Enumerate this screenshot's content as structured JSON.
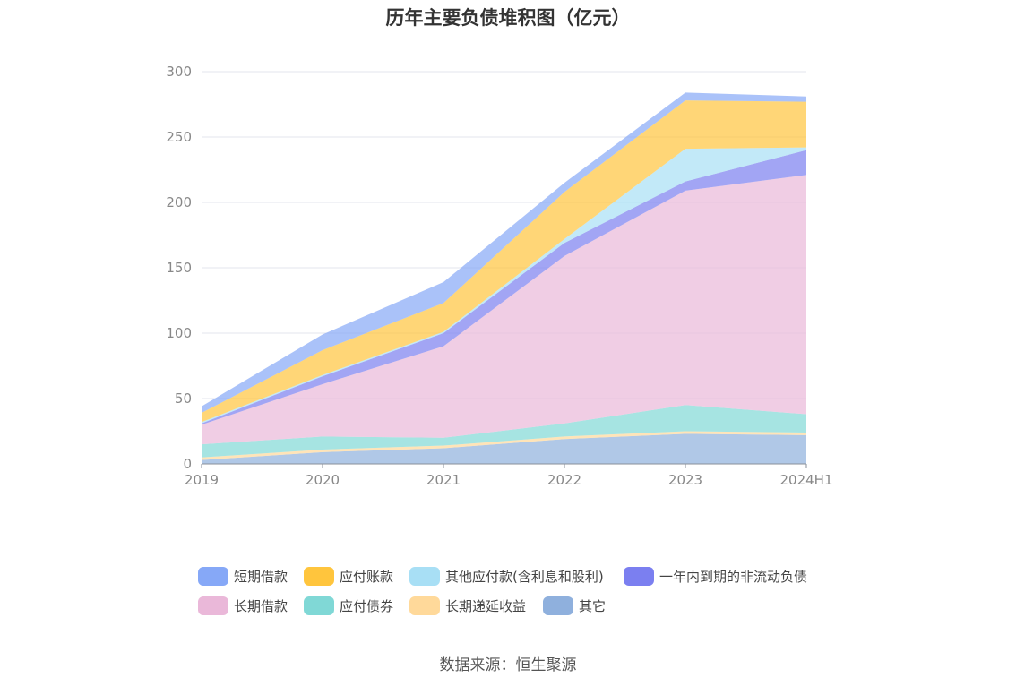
{
  "title": "历年主要负债堆积图（亿元）",
  "source": "数据来源：恒生聚源",
  "chart_data": {
    "type": "area",
    "stacked": true,
    "title": "历年主要负债堆积图（亿元）",
    "xlabel": "",
    "ylabel": "",
    "categories": [
      "2019",
      "2020",
      "2021",
      "2022",
      "2023",
      "2024H1"
    ],
    "y_ticks": [
      0,
      50,
      100,
      150,
      200,
      250,
      300
    ],
    "ylim": [
      0,
      300
    ],
    "grid": true,
    "legend_position": "bottom",
    "series": [
      {
        "name": "其它",
        "color": "#8fb0dd",
        "values": [
          3,
          9,
          12,
          19,
          23,
          22
        ]
      },
      {
        "name": "长期递延收益",
        "color": "#ffd99a",
        "values": [
          2,
          2,
          2,
          2,
          2,
          2
        ]
      },
      {
        "name": "应付债券",
        "color": "#80d8d6",
        "values": [
          10,
          10,
          6,
          10,
          20,
          14
        ]
      },
      {
        "name": "长期借款",
        "color": "#eab8d9",
        "values": [
          15,
          40,
          70,
          128,
          164,
          183
        ]
      },
      {
        "name": "一年内到期的非流动负债",
        "color": "#7b7ff0",
        "values": [
          1,
          6,
          10,
          10,
          7,
          19
        ]
      },
      {
        "name": "其他应付款(含利息和股利)",
        "color": "#a8dff5",
        "values": [
          1,
          1,
          1,
          3,
          25,
          2
        ]
      },
      {
        "name": "应付账款",
        "color": "#ffc53d",
        "values": [
          7,
          19,
          22,
          36,
          37,
          35
        ]
      },
      {
        "name": "短期借款",
        "color": "#86a8f7",
        "values": [
          5,
          12,
          16,
          7,
          6,
          4
        ]
      }
    ]
  },
  "legend": {
    "items": [
      {
        "label": "短期借款",
        "color": "#86a8f7"
      },
      {
        "label": "应付账款",
        "color": "#ffc53d"
      },
      {
        "label": "其他应付款(含利息和股利)",
        "color": "#a8dff5"
      },
      {
        "label": "一年内到期的非流动负债",
        "color": "#7b7ff0"
      },
      {
        "label": "长期借款",
        "color": "#eab8d9"
      },
      {
        "label": "应付债券",
        "color": "#80d8d6"
      },
      {
        "label": "长期递延收益",
        "color": "#ffd99a"
      },
      {
        "label": "其它",
        "color": "#8fb0dd"
      }
    ]
  }
}
